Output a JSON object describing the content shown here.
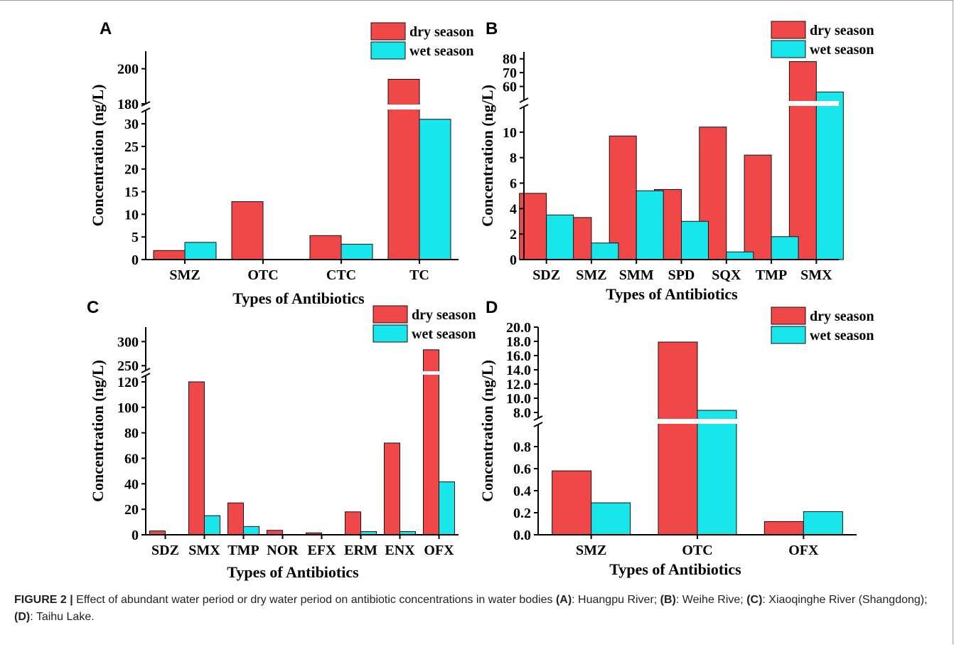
{
  "legend": {
    "dry": "dry season",
    "wet": "wet season"
  },
  "colors": {
    "dry": "#f04848",
    "wet": "#18e6ea",
    "edge": "#111111"
  },
  "caption": {
    "figure_label": "FIGURE 2 |",
    "text": " Effect of abundant water period or dry water period on antibiotic concentrations in water bodies ",
    "a_ref": "(A)",
    "a_text": ": Huangpu River; ",
    "b_ref": "(B)",
    "b_text": ": Weihe Rive; ",
    "c_ref": "(C)",
    "c_text": ": Xiaoqinghe River (Shangdong); ",
    "d_ref": "(D)",
    "d_text": ": Taihu Lake."
  },
  "chart_data": [
    {
      "panel": "A",
      "type": "bar",
      "xlabel": "Types of Antibiotics",
      "ylabel": "Concentration (ng/L)",
      "categories": [
        "SMZ",
        "OTC",
        "CTC",
        "TC"
      ],
      "series": [
        {
          "name": "dry season",
          "values": [
            2.0,
            12.8,
            5.3,
            194
          ]
        },
        {
          "name": "wet season",
          "values": [
            3.8,
            0,
            3.4,
            31
          ]
        }
      ],
      "axis_break": {
        "lower": [
          0,
          33
        ],
        "upper": [
          180,
          210
        ]
      },
      "yticks_lower": [
        0,
        5,
        10,
        15,
        20,
        25,
        30
      ],
      "yticks_upper": [
        180,
        200
      ]
    },
    {
      "panel": "B",
      "type": "bar",
      "xlabel": "Types of Antibiotics",
      "ylabel": "Concentration (ng/L)",
      "categories": [
        "SDZ",
        "SMZ",
        "SMM",
        "SPD",
        "SQX",
        "TMP",
        "SMX"
      ],
      "series": [
        {
          "name": "dry season",
          "values": [
            5.2,
            3.3,
            9.7,
            5.5,
            10.4,
            8.2,
            78
          ]
        },
        {
          "name": "wet season",
          "values": [
            3.5,
            1.3,
            5.4,
            3.0,
            0.6,
            1.8,
            56
          ]
        }
      ],
      "axis_break": {
        "lower": [
          0,
          12
        ],
        "upper": [
          50,
          85
        ]
      },
      "yticks_lower": [
        0,
        2,
        4,
        6,
        8,
        10
      ],
      "yticks_upper": [
        60,
        70,
        80
      ]
    },
    {
      "panel": "C",
      "type": "bar",
      "xlabel": "Types of Antibiotics",
      "ylabel": "Concentration (ng/L)",
      "categories": [
        "SDZ",
        "SMX",
        "TMP",
        "NOR",
        "EFX",
        "ERM",
        "ENX",
        "OFX"
      ],
      "series": [
        {
          "name": "dry season",
          "values": [
            3,
            120,
            25,
            3.5,
            1.5,
            18,
            72,
            283
          ]
        },
        {
          "name": "wet season",
          "values": [
            0,
            15,
            6.5,
            0,
            0,
            2.5,
            2.5,
            41.5
          ]
        }
      ],
      "axis_break": {
        "lower": [
          0,
          125
        ],
        "upper": [
          240,
          330
        ]
      },
      "yticks_lower": [
        0,
        20,
        40,
        60,
        80,
        100,
        120
      ],
      "yticks_upper": [
        250,
        300
      ]
    },
    {
      "panel": "D",
      "type": "bar",
      "xlabel": "Types of Antibiotics",
      "ylabel": "Concentration (ng/L)",
      "categories": [
        "SMZ",
        "OTC",
        "OFX"
      ],
      "series": [
        {
          "name": "dry season",
          "values": [
            0.58,
            17.9,
            0.12
          ]
        },
        {
          "name": "wet season",
          "values": [
            0.29,
            8.3,
            0.21
          ]
        }
      ],
      "axis_break": {
        "lower": [
          0,
          1.0
        ],
        "upper": [
          7.2,
          20
        ]
      },
      "yticks_lower": [
        0.0,
        0.2,
        0.4,
        0.6,
        0.8
      ],
      "yticks_upper": [
        8,
        10,
        12,
        14,
        16,
        18,
        20
      ]
    }
  ]
}
